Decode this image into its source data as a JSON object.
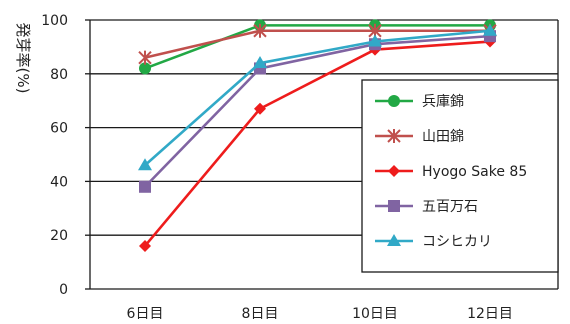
{
  "chart_data": {
    "type": "line",
    "title": "",
    "xlabel": "",
    "ylabel": "発芽率(%)",
    "categories": [
      "6日目",
      "8日目",
      "10日目",
      "12日目"
    ],
    "ylim": [
      0,
      100
    ],
    "yticks": [
      0,
      20,
      40,
      60,
      80,
      100
    ],
    "grid": "horizontal",
    "legend_position": "right",
    "series": [
      {
        "name": "兵庫錦",
        "values": [
          82,
          98,
          98,
          98
        ],
        "color": "#22a845",
        "marker": "circle"
      },
      {
        "name": "山田錦",
        "values": [
          86,
          96,
          96,
          96
        ],
        "color": "#c0504d",
        "marker": "asterisk"
      },
      {
        "name": "Hyogo Sake 85",
        "values": [
          16,
          67,
          89,
          92
        ],
        "color": "#ee1c1c",
        "marker": "diamond"
      },
      {
        "name": "五百万石",
        "values": [
          38,
          82,
          91,
          94
        ],
        "color": "#8064a2",
        "marker": "square"
      },
      {
        "name": "コシヒカリ",
        "values": [
          46,
          84,
          92,
          96
        ],
        "color": "#31a9c7",
        "marker": "triangle"
      }
    ]
  }
}
